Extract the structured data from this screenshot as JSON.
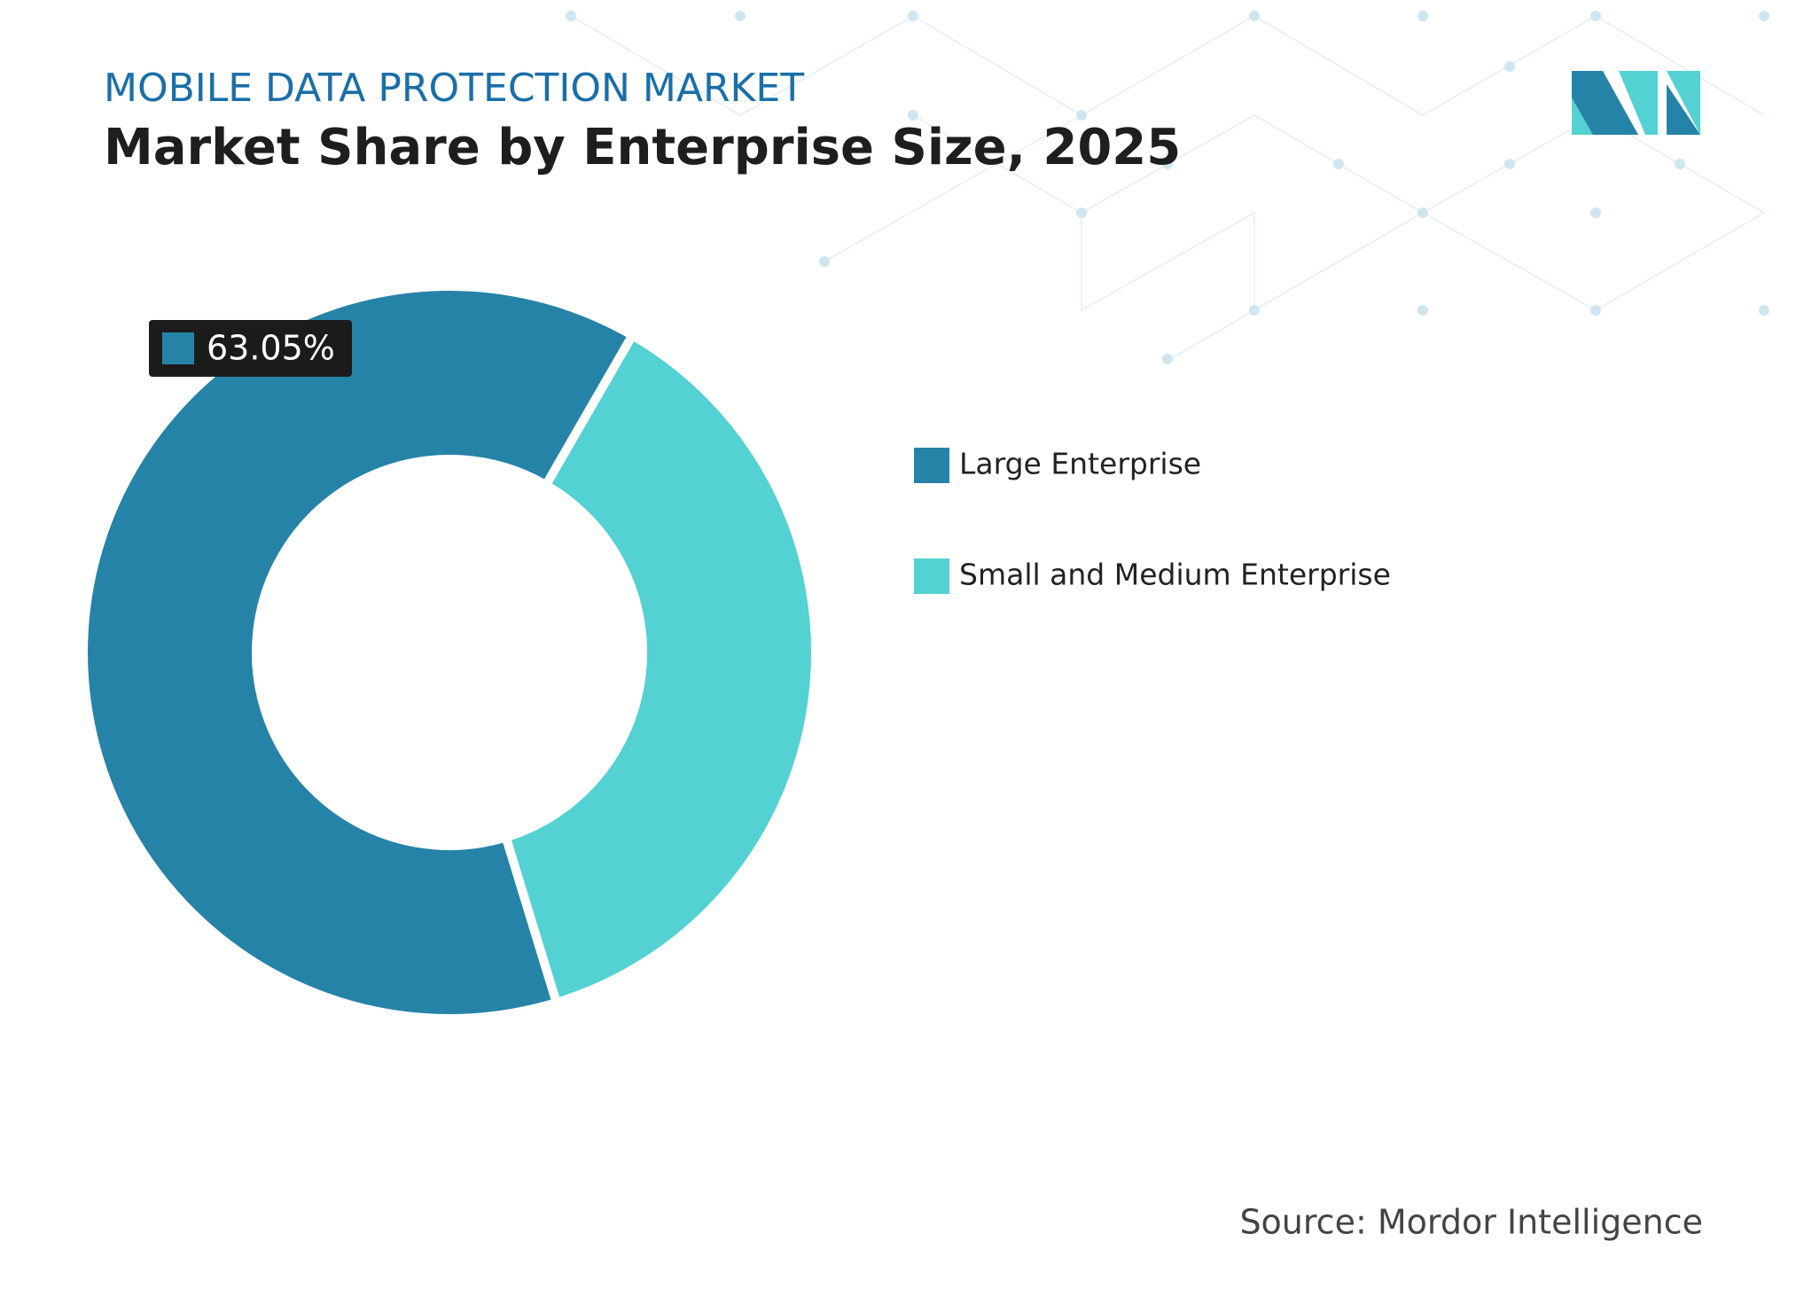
{
  "chart_data": {
    "type": "donut",
    "subtitle": "MOBILE DATA PROTECTION MARKET",
    "title": "Market Share by Enterprise Size, 2025",
    "categories": [
      "Large Enterprise",
      "Small and Medium Enterprise"
    ],
    "values": [
      63.05,
      36.95
    ],
    "value_labels": [
      "63.05%",
      null
    ],
    "colors": [
      "#2683a8",
      "#53d1d3"
    ],
    "legend": "right",
    "source": "Source: Mordor Intelligence"
  }
}
